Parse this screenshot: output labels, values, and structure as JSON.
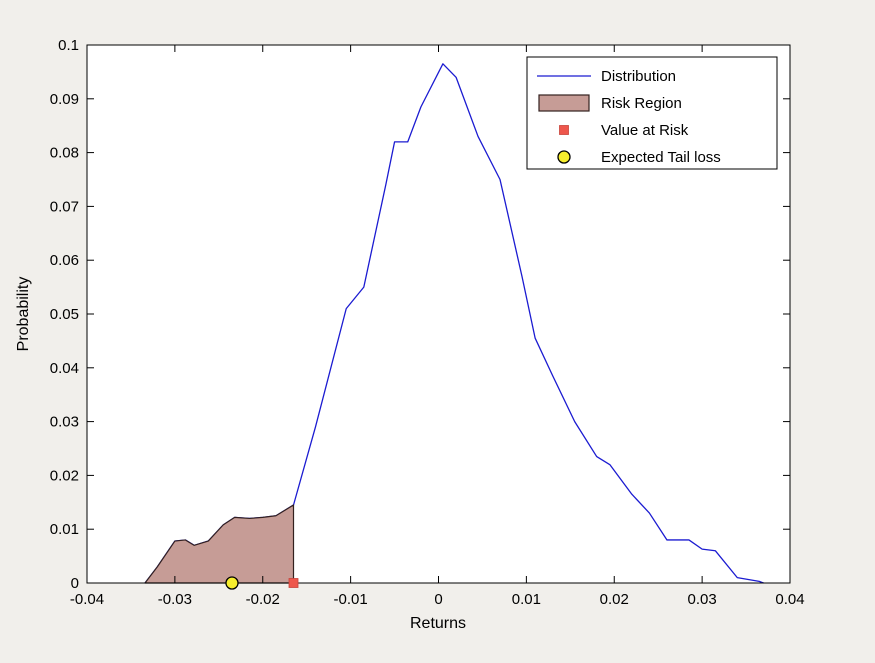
{
  "figure": {
    "background": "#f1efeb",
    "plot_background": "#ffffff"
  },
  "chart_data": {
    "type": "line",
    "title": "",
    "xlabel": "Returns",
    "ylabel": "Probability",
    "xlim": [
      -0.04,
      0.04
    ],
    "ylim": [
      0,
      0.1
    ],
    "grid": false,
    "legend_position": "top-right",
    "x_tick_values": [
      -0.04,
      -0.03,
      -0.02,
      -0.01,
      0,
      0.01,
      0.02,
      0.03,
      0.04
    ],
    "x_tick_labels": [
      "-0.04",
      "-0.03",
      "-0.02",
      "-0.01",
      "0",
      "0.01",
      "0.02",
      "0.03",
      "0.04"
    ],
    "y_tick_values": [
      0,
      0.01,
      0.02,
      0.03,
      0.04,
      0.05,
      0.06,
      0.07,
      0.08,
      0.09,
      0.1
    ],
    "y_tick_labels": [
      "0",
      "0.01",
      "0.02",
      "0.03",
      "0.04",
      "0.05",
      "0.06",
      "0.07",
      "0.08",
      "0.09",
      "0.1"
    ],
    "distribution": {
      "label": "Distribution",
      "color": "#1b1bd1",
      "points": [
        [
          -0.0334,
          0.0
        ],
        [
          -0.032,
          0.003
        ],
        [
          -0.03,
          0.0078
        ],
        [
          -0.0288,
          0.008
        ],
        [
          -0.0278,
          0.007
        ],
        [
          -0.0262,
          0.0078
        ],
        [
          -0.0245,
          0.0108
        ],
        [
          -0.0232,
          0.0122
        ],
        [
          -0.0215,
          0.012
        ],
        [
          -0.02,
          0.0122
        ],
        [
          -0.0185,
          0.0125
        ],
        [
          -0.0165,
          0.0145
        ],
        [
          -0.014,
          0.029
        ],
        [
          -0.0105,
          0.051
        ],
        [
          -0.0095,
          0.053
        ],
        [
          -0.0085,
          0.055
        ],
        [
          -0.006,
          0.074
        ],
        [
          -0.005,
          0.082
        ],
        [
          -0.0035,
          0.082
        ],
        [
          -0.002,
          0.0885
        ],
        [
          0.0005,
          0.0965
        ],
        [
          0.002,
          0.094
        ],
        [
          0.0045,
          0.083
        ],
        [
          0.007,
          0.075
        ],
        [
          0.0095,
          0.057
        ],
        [
          0.011,
          0.0455
        ],
        [
          0.013,
          0.0385
        ],
        [
          0.0155,
          0.03
        ],
        [
          0.018,
          0.0235
        ],
        [
          0.0195,
          0.022
        ],
        [
          0.022,
          0.0165
        ],
        [
          0.024,
          0.013
        ],
        [
          0.026,
          0.008
        ],
        [
          0.0285,
          0.008
        ],
        [
          0.03,
          0.0063
        ],
        [
          0.0315,
          0.006
        ],
        [
          0.034,
          0.001
        ],
        [
          0.0365,
          0.0003
        ],
        [
          0.037,
          0.0
        ]
      ]
    },
    "risk_region": {
      "label": "Risk Region",
      "fill": "#c69c96",
      "edge": "#33211f",
      "points": [
        [
          -0.0334,
          0.0
        ],
        [
          -0.032,
          0.003
        ],
        [
          -0.03,
          0.0078
        ],
        [
          -0.0288,
          0.008
        ],
        [
          -0.0278,
          0.007
        ],
        [
          -0.0262,
          0.0078
        ],
        [
          -0.0245,
          0.0108
        ],
        [
          -0.0232,
          0.0122
        ],
        [
          -0.0215,
          0.012
        ],
        [
          -0.02,
          0.0122
        ],
        [
          -0.0185,
          0.0125
        ],
        [
          -0.0165,
          0.0145
        ],
        [
          -0.0165,
          0.0
        ]
      ]
    },
    "value_at_risk": {
      "label": "Value at Risk",
      "color": "#ee574c",
      "x": -0.0165,
      "y": 0
    },
    "expected_tail_loss": {
      "label": "Expected Tail loss",
      "fill": "#f7ee2d",
      "edge": "#000000",
      "x": -0.0235,
      "y": 0
    },
    "legend": {
      "entries": [
        {
          "label": "Distribution",
          "swatch": "line"
        },
        {
          "label": "Risk Region",
          "swatch": "patch"
        },
        {
          "label": "Value at Risk",
          "swatch": "square"
        },
        {
          "label": "Expected Tail loss",
          "swatch": "circle"
        }
      ]
    }
  }
}
